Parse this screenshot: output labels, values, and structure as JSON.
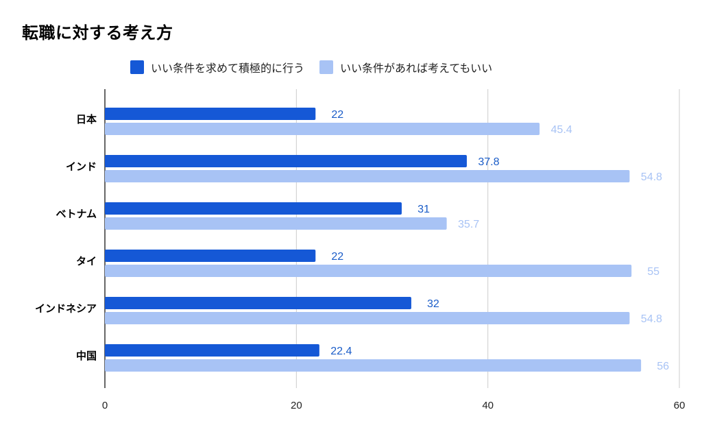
{
  "chart_data": {
    "type": "bar",
    "orientation": "horizontal",
    "title": "転職に対する考え方",
    "categories": [
      "日本",
      "インド",
      "ベトナム",
      "タイ",
      "インドネシア",
      "中国"
    ],
    "series": [
      {
        "name": "いい条件を求めて積極的に行う",
        "color": "#1558d6",
        "values": [
          22,
          37.8,
          31,
          22,
          32,
          22.4
        ]
      },
      {
        "name": "いい条件があれば考えてもいい",
        "color": "#a8c3f5",
        "values": [
          45.4,
          54.8,
          35.7,
          55,
          54.8,
          56
        ]
      }
    ],
    "xlim": [
      0,
      60
    ],
    "ticks": [
      0,
      20,
      40,
      60
    ],
    "grid": true,
    "legend_position": "top",
    "label_colors": [
      "#1a5cc8",
      "#a8c3f5"
    ]
  }
}
